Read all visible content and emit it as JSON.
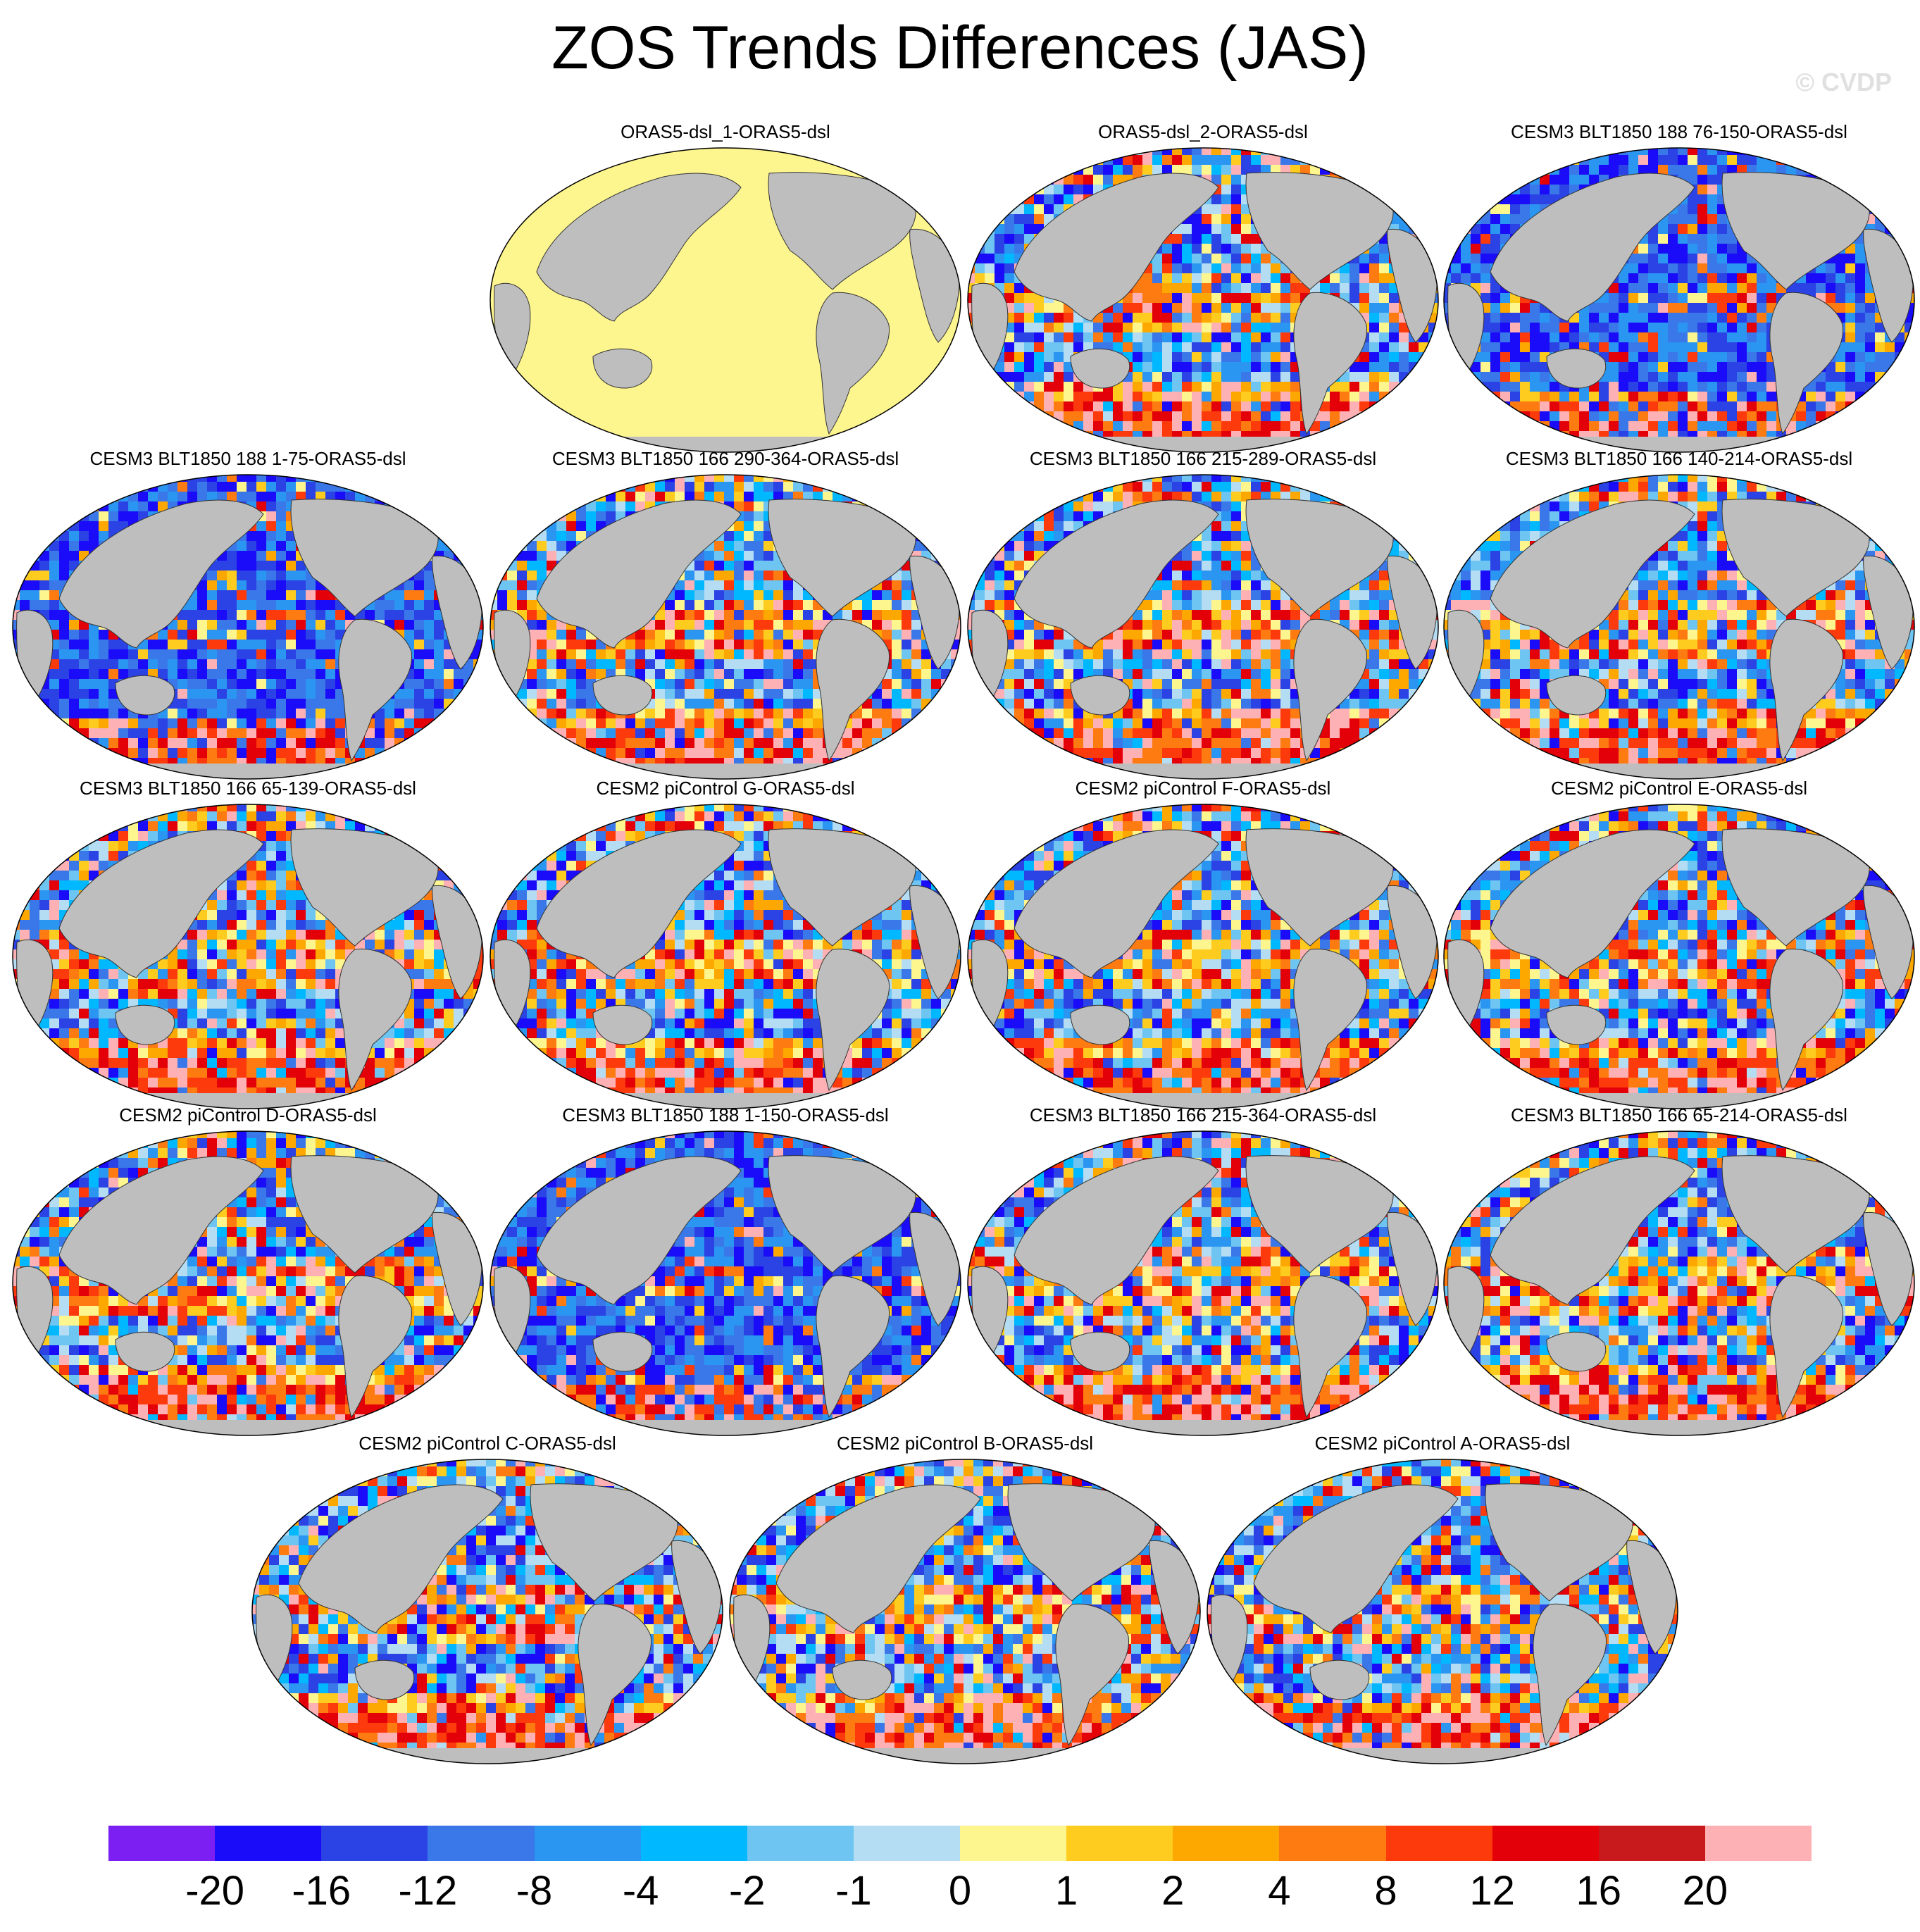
{
  "title": "ZOS Trends Differences (JAS)",
  "credit": "© CVDP",
  "panels": [
    {
      "label": "ORAS5-dsl_1-ORAS5-dsl",
      "pattern": "uniform"
    },
    {
      "label": "ORAS5-dsl_2-ORAS5-dsl",
      "pattern": "mixed"
    },
    {
      "label": "CESM3 BLT1850 188 76-150-ORAS5-dsl",
      "pattern": "negative"
    },
    {
      "label": "CESM3 BLT1850 188 1-75-ORAS5-dsl",
      "pattern": "negative"
    },
    {
      "label": "CESM3 BLT1850 166 290-364-ORAS5-dsl",
      "pattern": "mixed"
    },
    {
      "label": "CESM3 BLT1850 166 215-289-ORAS5-dsl",
      "pattern": "mixed"
    },
    {
      "label": "CESM3 BLT1850 166 140-214-ORAS5-dsl",
      "pattern": "mixed"
    },
    {
      "label": "CESM3 BLT1850 166 65-139-ORAS5-dsl",
      "pattern": "mixed"
    },
    {
      "label": "CESM2 piControl G-ORAS5-dsl",
      "pattern": "mixed"
    },
    {
      "label": "CESM2 piControl F-ORAS5-dsl",
      "pattern": "mixed"
    },
    {
      "label": "CESM2 piControl E-ORAS5-dsl",
      "pattern": "mixed"
    },
    {
      "label": "CESM2 piControl D-ORAS5-dsl",
      "pattern": "mixed"
    },
    {
      "label": "CESM3 BLT1850 188 1-150-ORAS5-dsl",
      "pattern": "negative"
    },
    {
      "label": "CESM3 BLT1850 166 215-364-ORAS5-dsl",
      "pattern": "mixed"
    },
    {
      "label": "CESM3 BLT1850 166 65-214-ORAS5-dsl",
      "pattern": "mixed"
    },
    {
      "label": "CESM2 piControl C-ORAS5-dsl",
      "pattern": "mixed"
    },
    {
      "label": "CESM2 piControl B-ORAS5-dsl",
      "pattern": "mixed"
    },
    {
      "label": "CESM2 piControl A-ORAS5-dsl",
      "pattern": "mixed"
    }
  ],
  "colorbar": {
    "colors": [
      "#7b1ff2",
      "#1a0bf9",
      "#2b42e4",
      "#3a78ea",
      "#2b95f2",
      "#00b8ff",
      "#6fc5f2",
      "#b4dcf2",
      "#fdf58e",
      "#fdcc1e",
      "#fda800",
      "#fd7b10",
      "#fd3a0c",
      "#e30008",
      "#c8191d",
      "#fdb1b4"
    ],
    "labels": [
      "-20",
      "-16",
      "-12",
      "-8",
      "-4",
      "-2",
      "-1",
      "0",
      "1",
      "2",
      "4",
      "8",
      "12",
      "16",
      "20"
    ]
  },
  "colors": {
    "land": "#bebebe",
    "uniform_ocean": "#fdf58e"
  }
}
